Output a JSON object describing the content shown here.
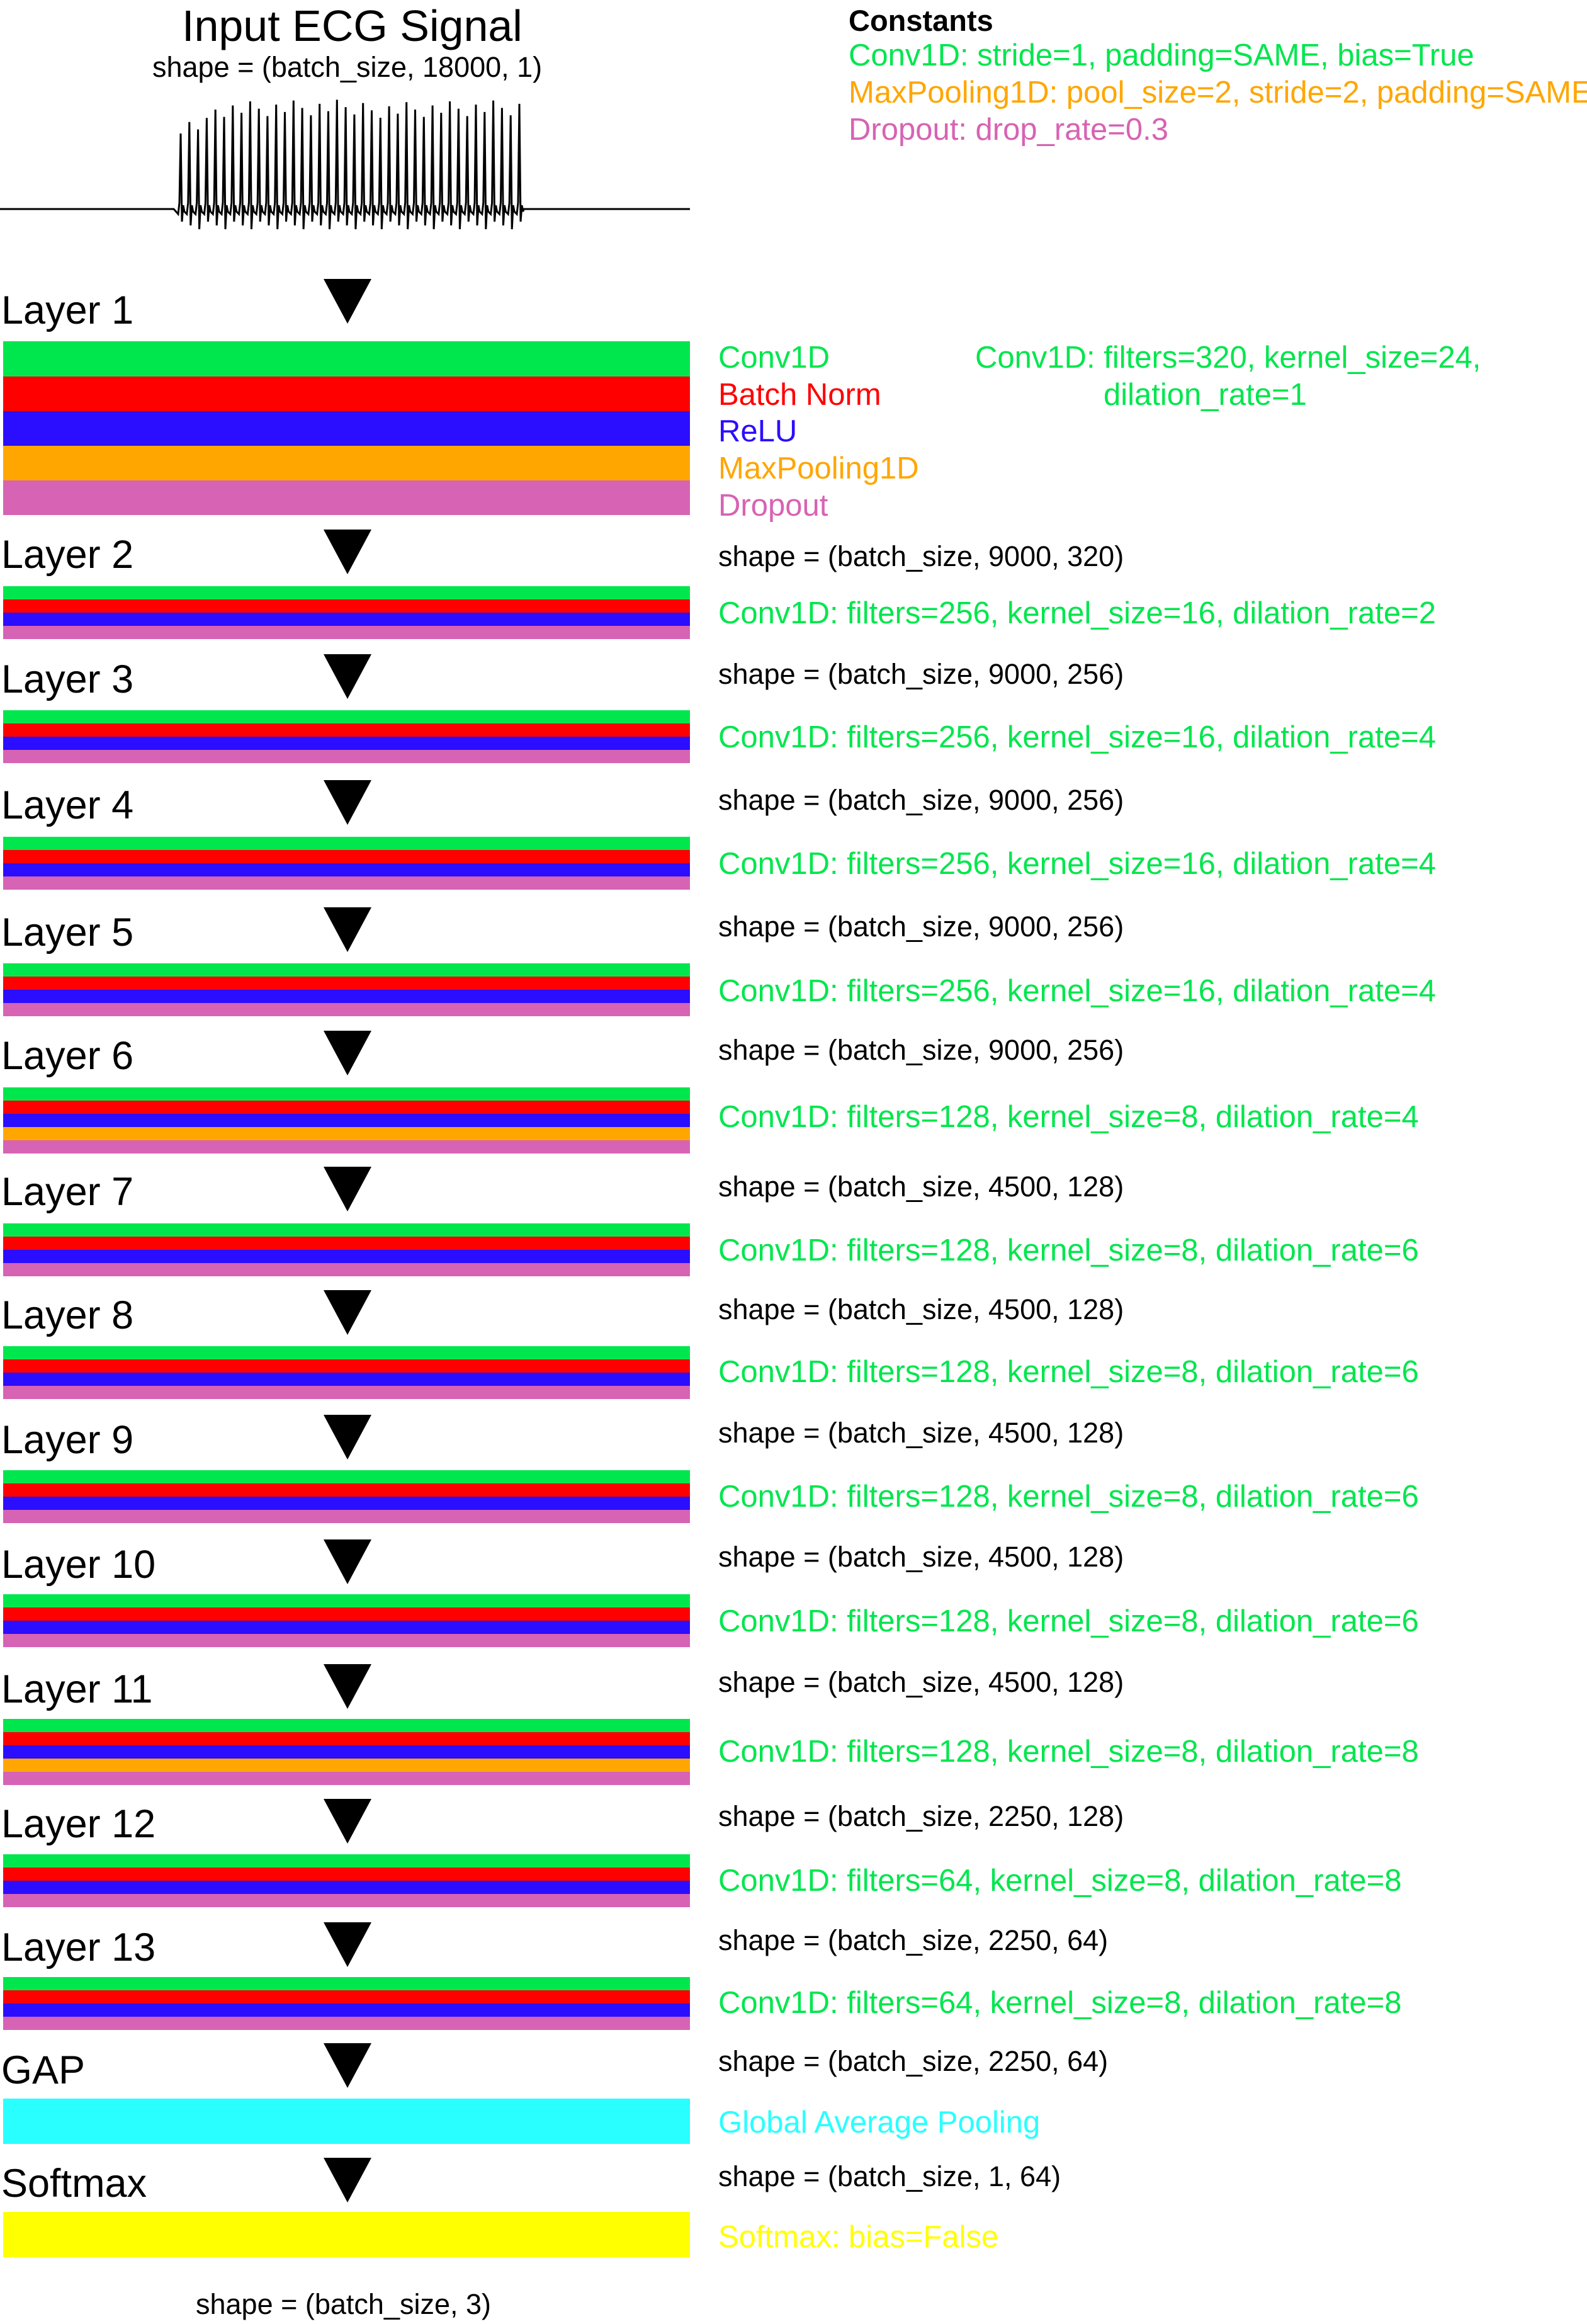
{
  "colors": {
    "conv": "#00e64d",
    "batchnorm": "#ff0000",
    "relu": "#2b0dff",
    "maxpool": "#ffa600",
    "dropout": "#d763b4",
    "gap": "#29ffff",
    "softmax": "#ffff00",
    "text": "#000000"
  },
  "input": {
    "title": "Input ECG Signal",
    "shape": "shape = (batch_size, 18000, 1)"
  },
  "constants": {
    "title": "Constants",
    "conv": "Conv1D: stride=1, padding=SAME, bias=True",
    "maxpool": "MaxPooling1D: pool_size=2, stride=2, padding=SAME",
    "dropout": "Dropout: drop_rate=0.3"
  },
  "legend": {
    "conv": "Conv1D",
    "batchnorm": "Batch Norm",
    "relu": "ReLU",
    "maxpool": "MaxPooling1D",
    "dropout": "Dropout"
  },
  "layers": [
    {
      "name": "Layer 1",
      "param_line1": "Conv1D: filters=320, kernel_size=24,",
      "param_line2": "dilation_rate=1",
      "pool": true
    },
    {
      "name": "Layer 2",
      "shape": "shape = (batch_size, 9000, 320)",
      "params": "Conv1D: filters=256, kernel_size=16, dilation_rate=2",
      "pool": false
    },
    {
      "name": "Layer 3",
      "shape": "shape = (batch_size, 9000, 256)",
      "params": "Conv1D: filters=256, kernel_size=16, dilation_rate=4",
      "pool": false
    },
    {
      "name": "Layer 4",
      "shape": "shape = (batch_size, 9000, 256)",
      "params": "Conv1D: filters=256, kernel_size=16, dilation_rate=4",
      "pool": false
    },
    {
      "name": "Layer 5",
      "shape": "shape = (batch_size, 9000, 256)",
      "params": "Conv1D: filters=256, kernel_size=16, dilation_rate=4",
      "pool": false
    },
    {
      "name": "Layer 6",
      "shape": "shape = (batch_size, 9000, 256)",
      "params": "Conv1D: filters=128, kernel_size=8, dilation_rate=4",
      "pool": true
    },
    {
      "name": "Layer 7",
      "shape": "shape = (batch_size, 4500, 128)",
      "params": "Conv1D: filters=128, kernel_size=8, dilation_rate=6",
      "pool": false
    },
    {
      "name": "Layer 8",
      "shape": "shape = (batch_size, 4500, 128)",
      "params": "Conv1D: filters=128, kernel_size=8, dilation_rate=6",
      "pool": false
    },
    {
      "name": "Layer 9",
      "shape": "shape = (batch_size, 4500, 128)",
      "params": "Conv1D: filters=128, kernel_size=8, dilation_rate=6",
      "pool": false
    },
    {
      "name": "Layer 10",
      "shape": "shape = (batch_size, 4500, 128)",
      "params": "Conv1D: filters=128, kernel_size=8, dilation_rate=6",
      "pool": false
    },
    {
      "name": "Layer 11",
      "shape": "shape = (batch_size, 4500, 128)",
      "params": "Conv1D: filters=128, kernel_size=8, dilation_rate=8",
      "pool": true
    },
    {
      "name": "Layer 12",
      "shape": "shape = (batch_size, 2250, 128)",
      "params": "Conv1D: filters=64, kernel_size=8, dilation_rate=8",
      "pool": false
    },
    {
      "name": "Layer 13",
      "shape": "shape = (batch_size, 2250, 64)",
      "params": "Conv1D: filters=64, kernel_size=8, dilation_rate=8",
      "pool": false
    }
  ],
  "gap": {
    "name": "GAP",
    "shape": "shape = (batch_size, 2250, 64)",
    "label": "Global Average Pooling"
  },
  "softmax": {
    "name": "Softmax",
    "shape": "shape = (batch_size, 1, 64)",
    "label": "Softmax: bias=False"
  },
  "output": {
    "shape": "shape = (batch_size, 3)"
  }
}
